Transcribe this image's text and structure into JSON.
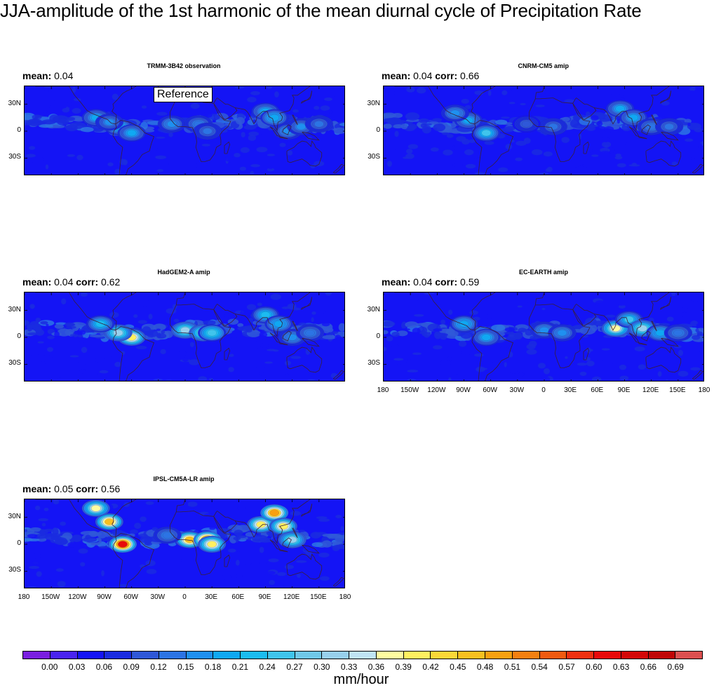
{
  "title": "JJA-amplitude of the 1st harmonic of the mean diurnal cycle of Precipitation Rate",
  "reference_label": "Reference",
  "units": "mm/hour",
  "lat_labels": [
    "30N",
    "0",
    "30S"
  ],
  "lon_labels": [
    "180",
    "150W",
    "120W",
    "90W",
    "60W",
    "30W",
    "0",
    "30E",
    "60E",
    "90E",
    "120E",
    "150E",
    "180"
  ],
  "colorbar": {
    "labels": [
      "0.00",
      "0.03",
      "0.06",
      "0.09",
      "0.12",
      "0.15",
      "0.18",
      "0.21",
      "0.24",
      "0.27",
      "0.30",
      "0.33",
      "0.36",
      "0.39",
      "0.42",
      "0.45",
      "0.48",
      "0.51",
      "0.54",
      "0.57",
      "0.60",
      "0.63",
      "0.66",
      "0.69"
    ],
    "colors": [
      "#7a1fe0",
      "#4a24f0",
      "#1414f5",
      "#1a2ce0",
      "#2f58d8",
      "#2c74e4",
      "#1f90f0",
      "#10a8f2",
      "#1cbcf0",
      "#40c4ec",
      "#70c8e8",
      "#98d0ec",
      "#c0e4f4",
      "#fffca0",
      "#fff060",
      "#fcd838",
      "#f8c020",
      "#f8a010",
      "#f48010",
      "#f05a10",
      "#f03010",
      "#e80a0a",
      "#d40808",
      "#c00606",
      "#dc5050"
    ]
  },
  "panels": [
    {
      "title": "TRMM-3B42 observation",
      "mean_label": "mean:",
      "mean": "0.04",
      "corr_label": "",
      "corr": ""
    },
    {
      "title": "CNRM-CM5 amip",
      "mean_label": "mean:",
      "mean": "0.04",
      "corr_label": "corr:",
      "corr": "0.66"
    },
    {
      "title": "HadGEM2-A amip",
      "mean_label": "mean:",
      "mean": "0.04",
      "corr_label": "corr:",
      "corr": "0.62"
    },
    {
      "title": "EC-EARTH amip",
      "mean_label": "mean:",
      "mean": "0.04",
      "corr_label": "corr:",
      "corr": "0.59"
    },
    {
      "title": "IPSL-CM5A-LR amip",
      "mean_label": "mean:",
      "mean": "0.05",
      "corr_label": "corr:",
      "corr": "0.56"
    }
  ],
  "chart_data": {
    "type": "heatmap",
    "title": "JJA-amplitude of the 1st harmonic of the mean diurnal cycle of Precipitation Rate",
    "units": "mm/hour",
    "xlim": [
      -180,
      180
    ],
    "ylim": [
      -50,
      50
    ],
    "x_ticks": [
      "180",
      "150W",
      "120W",
      "90W",
      "60W",
      "30W",
      "0",
      "30E",
      "60E",
      "90E",
      "120E",
      "150E",
      "180"
    ],
    "y_ticks": [
      "30N",
      "0",
      "30S"
    ],
    "levels": [
      0.0,
      0.03,
      0.06,
      0.09,
      0.12,
      0.15,
      0.18,
      0.21,
      0.24,
      0.27,
      0.3,
      0.33,
      0.36,
      0.39,
      0.42,
      0.45,
      0.48,
      0.51,
      0.54,
      0.57,
      0.6,
      0.63,
      0.66,
      0.69
    ],
    "panels": [
      {
        "name": "TRMM-3B42 observation",
        "mean": 0.04,
        "reference": true,
        "hotspots": [
          [
            -75,
            5,
            0.2
          ],
          [
            -60,
            -2,
            0.18
          ],
          [
            -15,
            8,
            0.16
          ],
          [
            15,
            8,
            0.14
          ],
          [
            25,
            0,
            0.12
          ],
          [
            90,
            22,
            0.18
          ],
          [
            100,
            15,
            0.2
          ],
          [
            115,
            0,
            0.16
          ],
          [
            130,
            5,
            0.15
          ],
          [
            -100,
            15,
            0.18
          ],
          [
            -85,
            10,
            0.15
          ],
          [
            150,
            8,
            0.12
          ]
        ]
      },
      {
        "name": "CNRM-CM5 amip",
        "mean": 0.04,
        "corr": 0.66,
        "hotspots": [
          [
            -65,
            -2,
            0.24
          ],
          [
            -85,
            12,
            0.18
          ],
          [
            -100,
            20,
            0.16
          ],
          [
            10,
            5,
            0.12
          ],
          [
            85,
            25,
            0.18
          ],
          [
            100,
            15,
            0.18
          ],
          [
            120,
            5,
            0.14
          ],
          [
            140,
            5,
            0.12
          ],
          [
            -20,
            8,
            0.1
          ]
        ]
      },
      {
        "name": "HadGEM2-A amip",
        "mean": 0.04,
        "corr": 0.62,
        "hotspots": [
          [
            -60,
            0,
            0.4
          ],
          [
            -75,
            5,
            0.3
          ],
          [
            -95,
            15,
            0.22
          ],
          [
            0,
            8,
            0.3
          ],
          [
            20,
            5,
            0.3
          ],
          [
            30,
            5,
            0.26
          ],
          [
            90,
            25,
            0.22
          ],
          [
            105,
            15,
            0.2
          ],
          [
            120,
            0,
            0.16
          ],
          [
            140,
            5,
            0.14
          ]
        ]
      },
      {
        "name": "EC-EARTH amip",
        "mean": 0.04,
        "corr": 0.59,
        "hotspots": [
          [
            -65,
            0,
            0.18
          ],
          [
            -90,
            15,
            0.2
          ],
          [
            0,
            8,
            0.16
          ],
          [
            20,
            5,
            0.16
          ],
          [
            80,
            10,
            0.36
          ],
          [
            95,
            20,
            0.24
          ],
          [
            110,
            10,
            0.3
          ],
          [
            130,
            5,
            0.2
          ],
          [
            150,
            5,
            0.14
          ]
        ]
      },
      {
        "name": "IPSL-CM5A-LR amip",
        "mean": 0.05,
        "corr": 0.56,
        "hotspots": [
          [
            -70,
            0,
            0.6
          ],
          [
            -85,
            25,
            0.45
          ],
          [
            -100,
            40,
            0.36
          ],
          [
            5,
            5,
            0.45
          ],
          [
            25,
            5,
            0.55
          ],
          [
            30,
            0,
            0.4
          ],
          [
            85,
            22,
            0.42
          ],
          [
            100,
            35,
            0.5
          ],
          [
            110,
            20,
            0.4
          ],
          [
            120,
            5,
            0.3
          ],
          [
            -20,
            10,
            0.14
          ]
        ]
      }
    ]
  }
}
